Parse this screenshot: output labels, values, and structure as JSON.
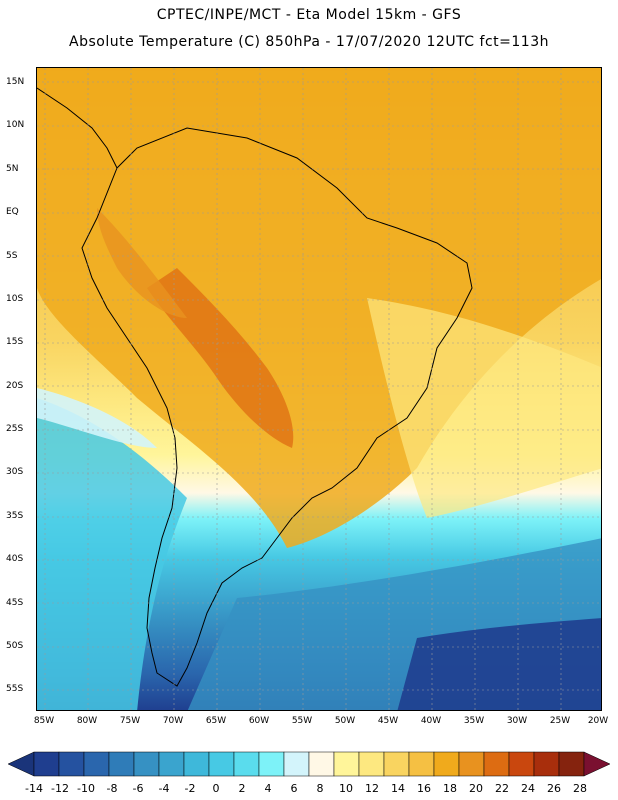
{
  "title": {
    "line1": "CPTEC/INPE/MCT -  Eta Model 15km - GFS",
    "line2": "Absolute Temperature (C) 850hPa - 17/07/2020 12UTC fct=113h"
  },
  "map": {
    "variable": "Absolute Temperature (C) 850hPa",
    "lat_range": [
      -58,
      17
    ],
    "lon_range": [
      -86,
      -20
    ],
    "lat_ticks": [
      "15N",
      "10N",
      "5N",
      "EQ",
      "5S",
      "10S",
      "15S",
      "20S",
      "25S",
      "30S",
      "35S",
      "40S",
      "45S",
      "50S",
      "55S"
    ],
    "lon_ticks": [
      "85W",
      "80W",
      "75W",
      "70W",
      "65W",
      "60W",
      "55W",
      "50W",
      "45W",
      "40W",
      "35W",
      "30W",
      "25W",
      "20W"
    ]
  },
  "colorbar": {
    "labels": [
      "-14",
      "-12",
      "-10",
      "-8",
      "-6",
      "-4",
      "-2",
      "0",
      "2",
      "4",
      "6",
      "8",
      "10",
      "12",
      "14",
      "16",
      "18",
      "20",
      "22",
      "24",
      "26",
      "28"
    ],
    "colors": [
      "#1f3e8f",
      "#2552a0",
      "#2a66ad",
      "#2f7cb8",
      "#3691c3",
      "#3aa4ce",
      "#3eb8da",
      "#47c9e4",
      "#5adced",
      "#7df2f8",
      "#d3f4fb",
      "#fff8e6",
      "#fff59a",
      "#fde880",
      "#f9d460",
      "#f5c043",
      "#f0aa1c",
      "#e8921f",
      "#dd6c12",
      "#c9470e",
      "#a82e0c",
      "#85230e"
    ],
    "low_color": "#1a347a",
    "high_color": "#7a1030"
  }
}
